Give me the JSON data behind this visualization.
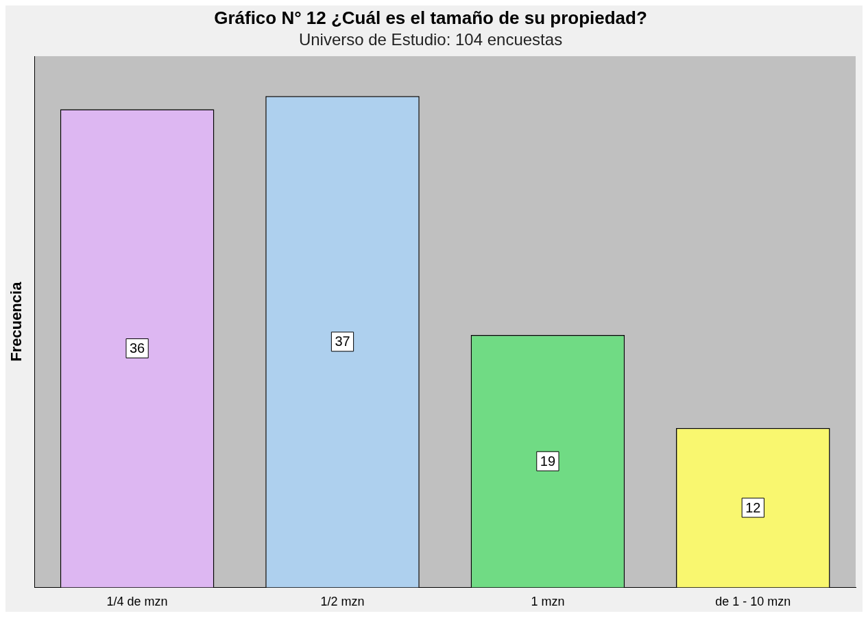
{
  "chart_data": {
    "type": "bar",
    "title": "Gráfico N° 12 ¿Cuál es el tamaño de su propiedad?",
    "subtitle": "Universo de Estudio: 104 encuestas",
    "ylabel": "Frecuencia",
    "categories": [
      "1/4 de mzn",
      "1/2 mzn",
      "1 mzn",
      "de 1 - 10 mzn"
    ],
    "values": [
      36,
      37,
      19,
      12
    ],
    "colors": [
      "#ddb7f2",
      "#aed0ee",
      "#70db84",
      "#f9f76f"
    ],
    "data_labels": true,
    "grid": false,
    "legend": false,
    "tick_labels": "x"
  }
}
